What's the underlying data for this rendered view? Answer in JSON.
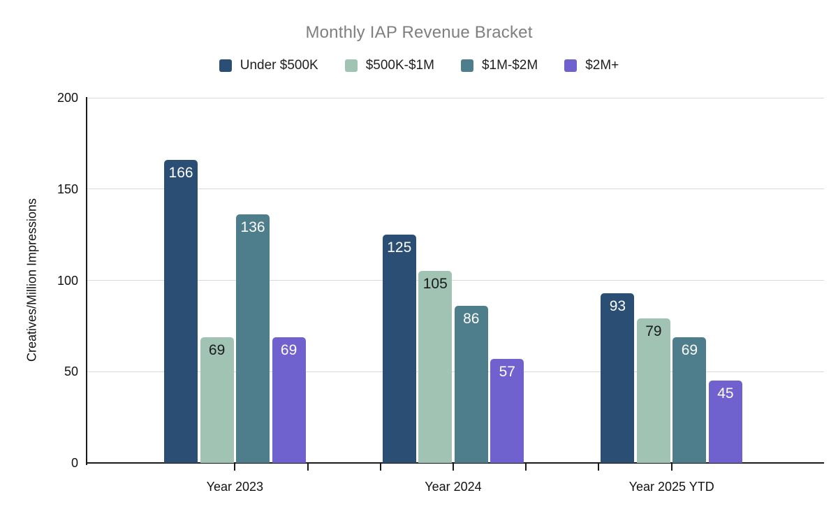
{
  "chart_data": {
    "type": "bar",
    "title": "Monthly IAP Revenue Bracket",
    "xlabel": "",
    "ylabel": "Creatives/Million Impressions",
    "categories": [
      "Year 2023",
      "Year 2024",
      "Year 2025 YTD"
    ],
    "series": [
      {
        "name": "Under $500K",
        "color": "#2b4e74",
        "label_color": "#ffffff",
        "values": [
          166,
          125,
          93
        ]
      },
      {
        "name": "$500K-$1M",
        "color": "#a0c3b3",
        "label_color": "#1a1a1a",
        "values": [
          69,
          105,
          79
        ]
      },
      {
        "name": "$1M-$2M",
        "color": "#4e7d8c",
        "label_color": "#ffffff",
        "values": [
          136,
          86,
          69
        ]
      },
      {
        "name": "$2M+",
        "color": "#7062ce",
        "label_color": "#ffffff",
        "values": [
          69,
          57,
          45
        ]
      }
    ],
    "ylim": [
      0,
      200
    ],
    "yticks": [
      0,
      50,
      100,
      150,
      200
    ],
    "grid": "horizontal",
    "legend_position": "top",
    "bar_labels": true,
    "colors": {
      "title_text": "#7f7f7f",
      "axis_text": "#111111",
      "legend_text": "#1f1f1f",
      "gridline": "#d9d9d9",
      "axis_line": "#1a1a1a",
      "background": "#ffffff"
    }
  }
}
